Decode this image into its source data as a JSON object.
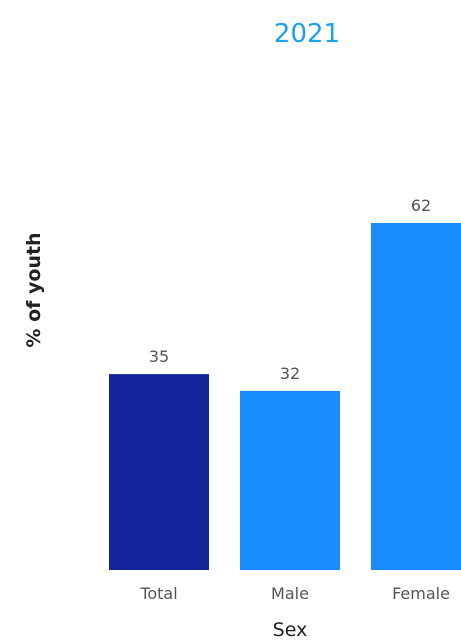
{
  "chart_data": {
    "type": "bar",
    "title": "2021",
    "xlabel": "Sex",
    "ylabel": "% of youth",
    "categories": [
      "Total",
      "Male",
      "Female"
    ],
    "values": [
      35,
      32,
      62
    ],
    "data_labels": [
      "35",
      "32",
      "62"
    ],
    "colors": [
      "#13259a",
      "#188cfc",
      "#188cfc"
    ],
    "ylim": [
      0,
      62
    ],
    "grid": false,
    "legend": "none"
  }
}
